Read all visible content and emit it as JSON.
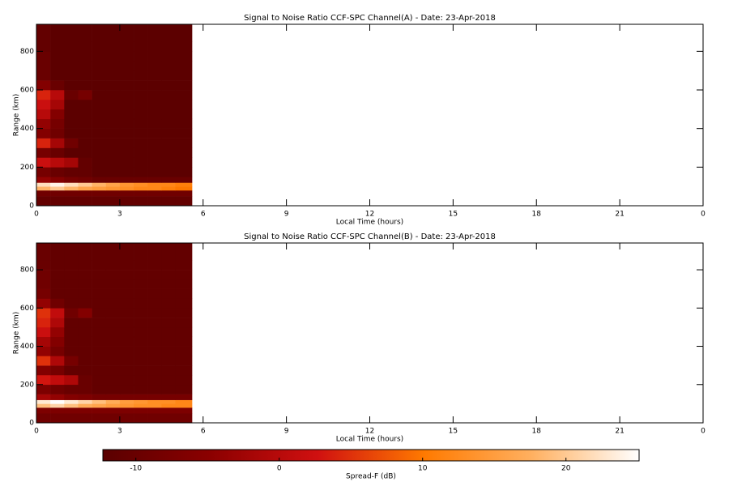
{
  "chart_data": [
    {
      "type": "heatmap",
      "title": "Signal to Noise Ratio CCF-SPC Channel(A) - Date: 23-Apr-2018",
      "x_label": "Local Time (hours)",
      "y_label": "Range (km)",
      "xlim": [
        0,
        24
      ],
      "xticks": [
        0,
        3,
        6,
        9,
        12,
        15,
        18,
        21,
        {
          "value": 24,
          "label": "0"
        }
      ],
      "ylim": [
        0,
        940
      ],
      "yticks": [
        0,
        200,
        400,
        600,
        800
      ],
      "x_bins": [
        0,
        0.5,
        1,
        1.5,
        2,
        2.5,
        3,
        3.5,
        4,
        4.5,
        5,
        5.6
      ],
      "y_bins": [
        0,
        50,
        80,
        100,
        120,
        150,
        200,
        250,
        300,
        350,
        400,
        450,
        500,
        550,
        600,
        650,
        700,
        750,
        800,
        850,
        940
      ],
      "z": [
        [
          -11,
          -11,
          -11,
          -11,
          -11,
          -11,
          -11,
          -11,
          -11,
          -11,
          -11
        ],
        [
          -9,
          -9,
          -9,
          -9,
          -9,
          -9,
          -9,
          -9,
          -9,
          -9,
          -9
        ],
        [
          18,
          20,
          18,
          16,
          15,
          14,
          13,
          12,
          12,
          11,
          10
        ],
        [
          22,
          24,
          22,
          20,
          18,
          16,
          14,
          13,
          12,
          12,
          11
        ],
        [
          -4,
          -6,
          -8,
          -9,
          -10,
          -10,
          -10,
          -10,
          -10,
          -10,
          -10
        ],
        [
          -8,
          -10,
          -11,
          -11,
          -12,
          -12,
          -12,
          -12,
          -12,
          -12,
          -12
        ],
        [
          2,
          0,
          -2,
          -11,
          -12,
          -12,
          -12,
          -12,
          -12,
          -12,
          -12
        ],
        [
          -8,
          -10,
          -12,
          -12,
          -12,
          -12,
          -12,
          -12,
          -12,
          -12,
          -12
        ],
        [
          4,
          -2,
          -9,
          -12,
          -12,
          -12,
          -12,
          -12,
          -12,
          -12,
          -12
        ],
        [
          -6,
          -9,
          -12,
          -12,
          -12,
          -12,
          -12,
          -12,
          -12,
          -12,
          -12
        ],
        [
          -4,
          -8,
          -12,
          -12,
          -12,
          -12,
          -12,
          -12,
          -12,
          -12,
          -12
        ],
        [
          0,
          -6,
          -12,
          -12,
          -12,
          -12,
          -12,
          -12,
          -12,
          -12,
          -12
        ],
        [
          2,
          -2,
          -12,
          -12,
          -12,
          -12,
          -12,
          -12,
          -12,
          -12,
          -12
        ],
        [
          4,
          0,
          -10,
          -8,
          -12,
          -12,
          -12,
          -12,
          -12,
          -12,
          -12
        ],
        [
          -6,
          -10,
          -12,
          -12,
          -12,
          -12,
          -12,
          -12,
          -12,
          -12,
          -12
        ],
        [
          -10,
          -12,
          -12,
          -12,
          -12,
          -12,
          -12,
          -12,
          -12,
          -12,
          -12
        ],
        [
          -10,
          -12,
          -12,
          -12,
          -12,
          -12,
          -12,
          -12,
          -12,
          -12,
          -12
        ],
        [
          -10,
          -12,
          -12,
          -12,
          -12,
          -12,
          -12,
          -12,
          -12,
          -12,
          -12
        ],
        [
          -11,
          -12,
          -12,
          -12,
          -12,
          -12,
          -12,
          -12,
          -12,
          -12,
          -12
        ],
        [
          -11,
          -12,
          -12,
          -12,
          -12,
          -12,
          -12,
          -12,
          -12,
          -12,
          -12
        ]
      ]
    },
    {
      "type": "heatmap",
      "title": "Signal to Noise Ratio CCF-SPC Channel(B) - Date: 23-Apr-2018",
      "x_label": "Local Time (hours)",
      "y_label": "Range (km)",
      "xlim": [
        0,
        24
      ],
      "xticks": [
        0,
        3,
        6,
        9,
        12,
        15,
        18,
        21,
        {
          "value": 24,
          "label": "0"
        }
      ],
      "ylim": [
        0,
        940
      ],
      "yticks": [
        0,
        200,
        400,
        600,
        800
      ],
      "x_bins": [
        0,
        0.5,
        1,
        1.5,
        2,
        2.5,
        3,
        3.5,
        4,
        4.5,
        5,
        5.6
      ],
      "y_bins": [
        0,
        50,
        80,
        100,
        120,
        150,
        200,
        250,
        300,
        350,
        400,
        450,
        500,
        550,
        600,
        650,
        700,
        750,
        800,
        850,
        940
      ],
      "z": [
        [
          -9,
          -9,
          -9,
          -9,
          -9,
          -9,
          -9,
          -9,
          -9,
          -9,
          -9
        ],
        [
          -7,
          -7,
          -7,
          -7,
          -7,
          -7,
          -7,
          -7,
          -7,
          -7,
          -7
        ],
        [
          19,
          21,
          19,
          17,
          16,
          15,
          14,
          13,
          13,
          12,
          12
        ],
        [
          23,
          25,
          23,
          21,
          19,
          17,
          15,
          14,
          13,
          13,
          12
        ],
        [
          -2,
          -4,
          -6,
          -7,
          -8,
          -8,
          -8,
          -8,
          -8,
          -8,
          -8
        ],
        [
          -7,
          -9,
          -10,
          -10,
          -11,
          -11,
          -11,
          -11,
          -11,
          -11,
          -11
        ],
        [
          3,
          1,
          -1,
          -10,
          -11,
          -11,
          -11,
          -11,
          -11,
          -11,
          -11
        ],
        [
          -6,
          -8,
          -11,
          -11,
          -11,
          -11,
          -11,
          -11,
          -11,
          -11,
          -11
        ],
        [
          5,
          -1,
          -8,
          -11,
          -11,
          -11,
          -11,
          -11,
          -11,
          -11,
          -11
        ],
        [
          -4,
          -8,
          -11,
          -11,
          -11,
          -11,
          -11,
          -11,
          -11,
          -11,
          -11
        ],
        [
          -2,
          -6,
          -11,
          -11,
          -11,
          -11,
          -11,
          -11,
          -11,
          -11,
          -11
        ],
        [
          2,
          -4,
          -11,
          -11,
          -11,
          -11,
          -11,
          -11,
          -11,
          -11,
          -11
        ],
        [
          4,
          -1,
          -11,
          -11,
          -11,
          -11,
          -11,
          -11,
          -11,
          -11,
          -11
        ],
        [
          5,
          1,
          -9,
          -6,
          -11,
          -11,
          -11,
          -11,
          -11,
          -11,
          -11
        ],
        [
          -4,
          -9,
          -11,
          -11,
          -11,
          -11,
          -11,
          -11,
          -11,
          -11,
          -11
        ],
        [
          -8,
          -11,
          -11,
          -11,
          -11,
          -11,
          -11,
          -11,
          -11,
          -11,
          -11
        ],
        [
          -9,
          -11,
          -11,
          -11,
          -11,
          -11,
          -11,
          -11,
          -11,
          -11,
          -11
        ],
        [
          -9,
          -11,
          -11,
          -11,
          -11,
          -11,
          -11,
          -11,
          -11,
          -11,
          -11
        ],
        [
          -10,
          -11,
          -11,
          -11,
          -11,
          -11,
          -11,
          -11,
          -11,
          -11,
          -11
        ],
        [
          -10,
          -11,
          -11,
          -11,
          -11,
          -11,
          -11,
          -11,
          -11,
          -11,
          -11
        ]
      ]
    },
    {
      "type": "colorbar",
      "label": "Spread-F (dB)",
      "zlim": [
        -12.3,
        25.1
      ],
      "zticks": [
        -10,
        0,
        10,
        20
      ],
      "colormap": [
        "#5a0000",
        "#8b0000",
        "#d01010",
        "#ff7a00",
        "#ffb060",
        "#ffffff"
      ]
    }
  ]
}
